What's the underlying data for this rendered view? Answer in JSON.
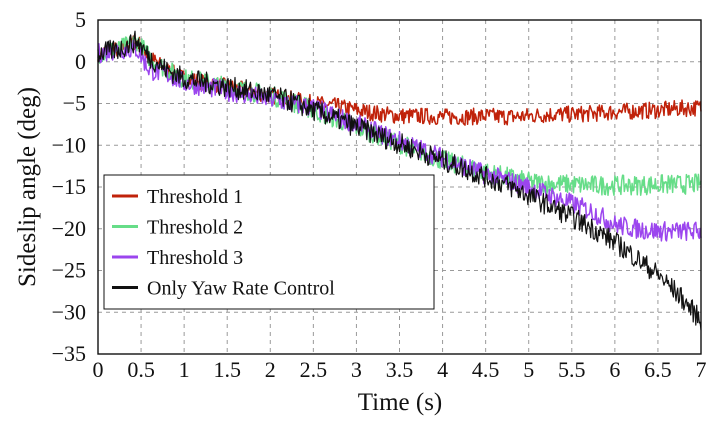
{
  "chart_data": {
    "type": "line",
    "xlabel": "Time (s)",
    "ylabel": "Sideslip angle (deg)",
    "xlim": [
      0,
      7
    ],
    "ylim": [
      -35,
      5
    ],
    "xticks": [
      0,
      0.5,
      1,
      1.5,
      2,
      2.5,
      3,
      3.5,
      4,
      4.5,
      5,
      5.5,
      6,
      6.5,
      7
    ],
    "yticks": [
      5,
      0,
      -5,
      -10,
      -15,
      -20,
      -25,
      -30,
      -35
    ],
    "grid": true,
    "legend_position": "bottom-left",
    "series": [
      {
        "name": "Threshold 1",
        "color": "#c0220a",
        "x": [
          0,
          0.25,
          0.45,
          0.6,
          0.8,
          1,
          1.25,
          1.5,
          1.75,
          2,
          2.25,
          2.5,
          2.75,
          3,
          3.25,
          3.5,
          3.75,
          4,
          4.25,
          4.5,
          4.75,
          5,
          5.25,
          5.5,
          5.75,
          6,
          6.25,
          6.5,
          6.75,
          7
        ],
        "y": [
          1,
          1.5,
          2.5,
          0.5,
          -1,
          -2,
          -2.5,
          -3,
          -3.5,
          -4,
          -4.5,
          -5,
          -5.3,
          -5.8,
          -6.2,
          -6.5,
          -6.5,
          -6.6,
          -6.6,
          -6.5,
          -6.6,
          -6.5,
          -6.3,
          -6.3,
          -6.2,
          -6,
          -5.9,
          -5.8,
          -5.6,
          -5.5
        ]
      },
      {
        "name": "Threshold 2",
        "color": "#66dd88",
        "x": [
          0,
          0.25,
          0.45,
          0.6,
          0.8,
          1,
          1.25,
          1.5,
          1.75,
          2,
          2.25,
          2.5,
          2.75,
          3,
          3.25,
          3.5,
          3.75,
          4,
          4.25,
          4.5,
          4.75,
          5,
          5.25,
          5.5,
          5.75,
          6,
          6.25,
          6.5,
          6.75,
          7
        ],
        "y": [
          1,
          1.5,
          2.5,
          0.5,
          -1,
          -2,
          -2.5,
          -3,
          -3.5,
          -4,
          -4.8,
          -5.8,
          -6.8,
          -7.8,
          -8.8,
          -9.8,
          -10.8,
          -11.8,
          -12.5,
          -13.2,
          -13.8,
          -14.4,
          -14.6,
          -14.7,
          -14.8,
          -14.8,
          -14.8,
          -14.7,
          -14.7,
          -14.6
        ]
      },
      {
        "name": "Threshold 3",
        "color": "#9b45ee",
        "x": [
          0,
          0.25,
          0.45,
          0.6,
          0.8,
          1,
          1.25,
          1.5,
          1.75,
          2,
          2.25,
          2.5,
          2.75,
          3,
          3.25,
          3.5,
          3.75,
          4,
          4.25,
          4.5,
          4.75,
          5,
          5.25,
          5.5,
          5.75,
          6,
          6.25,
          6.5,
          6.75,
          7
        ],
        "y": [
          1,
          1.5,
          1.5,
          -1,
          -1.5,
          -2.5,
          -3,
          -3.5,
          -4,
          -4.5,
          -5,
          -5.5,
          -6.5,
          -7.5,
          -8.5,
          -9.5,
          -10.5,
          -11.5,
          -12.5,
          -13.5,
          -14.2,
          -15,
          -16,
          -17,
          -18,
          -19.5,
          -20,
          -20.3,
          -20.3,
          -20.3
        ]
      },
      {
        "name": "Only Yaw Rate Control",
        "color": "#111111",
        "x": [
          0,
          0.25,
          0.45,
          0.6,
          0.8,
          1,
          1.25,
          1.5,
          1.75,
          2,
          2.25,
          2.5,
          2.75,
          3,
          3.25,
          3.5,
          3.75,
          4,
          4.25,
          4.5,
          4.75,
          5,
          5.25,
          5.5,
          5.75,
          6,
          6.25,
          6.5,
          6.75,
          7
        ],
        "y": [
          1,
          1.5,
          2.5,
          0.5,
          -1,
          -2,
          -2.5,
          -3,
          -3.5,
          -4,
          -4.8,
          -5.8,
          -6.8,
          -7.8,
          -8.8,
          -9.8,
          -10.8,
          -11.8,
          -12.8,
          -13.8,
          -14.8,
          -16,
          -17.3,
          -18.6,
          -20,
          -21.6,
          -23.5,
          -25.5,
          -28,
          -31
        ]
      }
    ]
  }
}
